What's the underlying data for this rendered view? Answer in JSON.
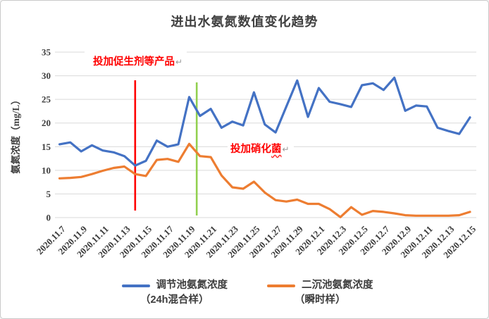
{
  "chart_data": {
    "type": "line",
    "title": "进出水氨氮数值变化趋势",
    "ylabel": "氨氮浓度（mg/L）",
    "xlabel": "",
    "ylim": [
      0,
      35
    ],
    "yticks": [
      0,
      5,
      10,
      15,
      20,
      25,
      30,
      35
    ],
    "grid": "horizontal",
    "legend_position": "bottom",
    "x_tick_labels": [
      "2020.11.7",
      "2020.11.9",
      "2020.11.11",
      "2020.11.13",
      "2020.11.15",
      "2020.11.17",
      "2020.11.19",
      "2020.11.21",
      "2020.11.23",
      "2020.11.25",
      "2020.11.27",
      "2020.11.29",
      "2020.12.1",
      "2020.12.3",
      "2020.12.5",
      "2020.12.7",
      "2020.12.9",
      "2020.12.11",
      "2020.12.13",
      "2020.12.15"
    ],
    "points_per_tick": 2,
    "n_points": 39,
    "series": [
      {
        "name": "调节池氨氮浓度（24h混合样）",
        "legend_line1": "调节池氨氮浓度",
        "legend_line2": "（24h混合样）",
        "color": "#4472C4",
        "values": [
          15.5,
          15.9,
          14.0,
          15.3,
          14.2,
          13.8,
          13.0,
          11.0,
          12.0,
          16.3,
          15.0,
          15.5,
          25.5,
          21.5,
          23.0,
          19.0,
          20.3,
          19.5,
          26.5,
          19.7,
          18.0,
          23.5,
          29.0,
          21.3,
          27.4,
          24.5,
          24.0,
          23.4,
          28.0,
          28.4,
          27.0,
          29.6,
          22.6,
          23.7,
          23.5,
          19.0,
          18.3,
          17.7,
          21.2
        ]
      },
      {
        "name": "二沉池氨氮浓度（瞬时样）",
        "legend_line1": "二沉池氨氮浓度",
        "legend_line2": "（瞬时样）",
        "color": "#ED7D31",
        "values": [
          8.3,
          8.4,
          8.6,
          9.2,
          9.9,
          10.5,
          10.8,
          9.2,
          8.8,
          12.2,
          12.4,
          11.8,
          15.6,
          13.0,
          12.8,
          8.9,
          6.4,
          6.1,
          7.6,
          5.3,
          3.7,
          3.4,
          3.8,
          2.9,
          2.9,
          1.8,
          0.1,
          2.2,
          0.6,
          1.4,
          1.2,
          0.9,
          0.5,
          0.4,
          0.4,
          0.4,
          0.4,
          0.5,
          1.2
        ]
      }
    ],
    "event_lines": [
      {
        "color": "#FF0000",
        "x_index": 7,
        "label": "投加促生剂等产品"
      },
      {
        "color": "#92D050",
        "x_index": 12.7,
        "label": "投加硝化菌"
      }
    ]
  },
  "annotations": [
    {
      "text_plain": "投加促生剂等产品",
      "text_squiggle": "",
      "suffix": "↵"
    },
    {
      "text_plain": "投加硝化",
      "text_squiggle": "菌",
      "suffix": "↵"
    }
  ],
  "style": {
    "gridline_color": "#d9d9d9",
    "axis_text_color": "#3d3d3d",
    "title_color": "#3f3f3f"
  }
}
